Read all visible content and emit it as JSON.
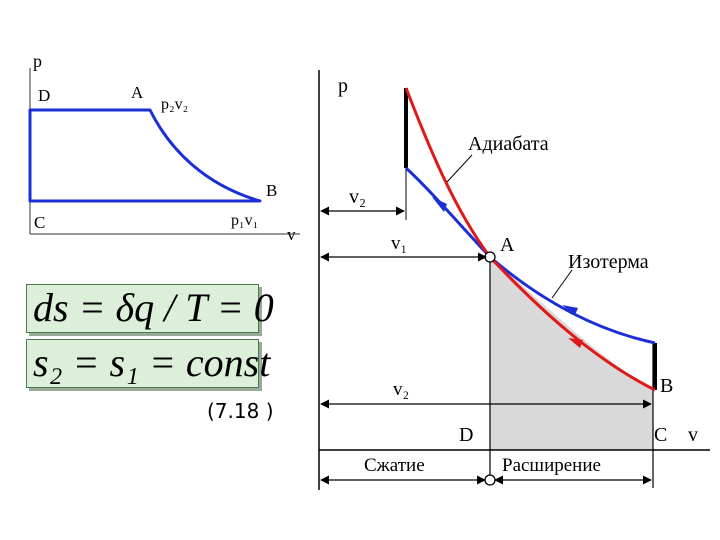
{
  "colors": {
    "blue": "#1c2fd6",
    "red": "#e01818",
    "shade": "#d9d9d9",
    "formula_bg": "#dcefd9"
  },
  "left_diagram": {
    "axis_p": "p",
    "axis_v": "v",
    "point_D": "D",
    "point_A": "A",
    "point_B": "B",
    "point_C": "C",
    "label_A_state": "p₂v₂",
    "label_B_state": "p₁v₁"
  },
  "formulas": {
    "entropy": "ds = δq / T = 0",
    "isentropic": "s₂ = s₁ = const"
  },
  "equation_number": "(7.18 )",
  "right_diagram": {
    "axis_p": "p",
    "axis_v": "v",
    "adiabat_label": "Адиабата",
    "isotherm_label": "Изотерма",
    "point_A": "A",
    "point_B": "B",
    "point_C": "C",
    "point_D": "D",
    "dim_v2_top": "v₂",
    "dim_v1": "v₁",
    "dim_v2_bottom": "v₂",
    "compression_label": "Сжатие",
    "expansion_label": "Расширение"
  }
}
